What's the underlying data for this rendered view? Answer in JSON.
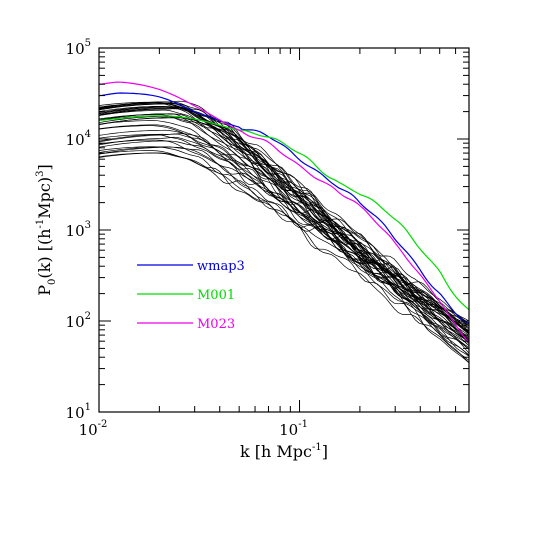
{
  "chart_data": {
    "type": "line",
    "x_scale": "log",
    "y_scale": "log",
    "xlabel": {
      "pre": "k [h Mpc",
      "sup": "-1",
      "post": "]"
    },
    "ylabel": {
      "pre": "P",
      "sub": "0",
      "mid": "(k) [(h",
      "sup1": "-1",
      "mid2": "Mpc)",
      "sup2": "3",
      "post": "]"
    },
    "xlim": [
      0.01,
      0.7
    ],
    "ylim": [
      10,
      100000
    ],
    "x_ticks": [
      {
        "value": 0.01,
        "base": "10",
        "exp": "-2"
      },
      {
        "value": 0.1,
        "base": "10",
        "exp": "-1"
      }
    ],
    "y_ticks": [
      {
        "value": 10,
        "base": "10",
        "exp": "1"
      },
      {
        "value": 100,
        "base": "10",
        "exp": "2"
      },
      {
        "value": 1000,
        "base": "10",
        "exp": "3"
      },
      {
        "value": 10000,
        "base": "10",
        "exp": "4"
      },
      {
        "value": 100000,
        "base": "10",
        "exp": "5"
      }
    ],
    "legend": [
      {
        "label": "wmap3",
        "color": "#0000dd"
      },
      {
        "label": "M001",
        "color": "#00dd00"
      },
      {
        "label": "M023",
        "color": "#ee00ee"
      }
    ],
    "series": [
      {
        "name": "wmap3",
        "color": "#0000dd",
        "x": [
          0.01,
          0.013,
          0.02,
          0.03,
          0.05,
          0.07,
          0.1,
          0.15,
          0.2,
          0.3,
          0.5,
          0.7
        ],
        "y": [
          30000,
          32000,
          29000,
          20000,
          13500,
          10800,
          6000,
          3200,
          2000,
          800,
          200,
          95
        ]
      },
      {
        "name": "M001",
        "color": "#00dd00",
        "x": [
          0.01,
          0.013,
          0.02,
          0.03,
          0.05,
          0.07,
          0.1,
          0.15,
          0.2,
          0.3,
          0.5,
          0.7
        ],
        "y": [
          16000,
          17000,
          18000,
          16500,
          12500,
          10500,
          7000,
          3500,
          2500,
          1300,
          350,
          130
        ]
      },
      {
        "name": "M023",
        "color": "#ee00ee",
        "x": [
          0.01,
          0.013,
          0.02,
          0.03,
          0.05,
          0.07,
          0.1,
          0.15,
          0.2,
          0.3,
          0.5,
          0.7
        ],
        "y": [
          40000,
          42000,
          35000,
          23000,
          12500,
          9000,
          5000,
          2800,
          1800,
          700,
          170,
          60
        ]
      }
    ],
    "black_bundle": {
      "color": "#000000",
      "count": 40,
      "k_peak": [
        0.018,
        0.025
      ],
      "amplitude": [
        7000,
        26000
      ],
      "y_at_xmax": [
        30,
        90
      ]
    }
  }
}
